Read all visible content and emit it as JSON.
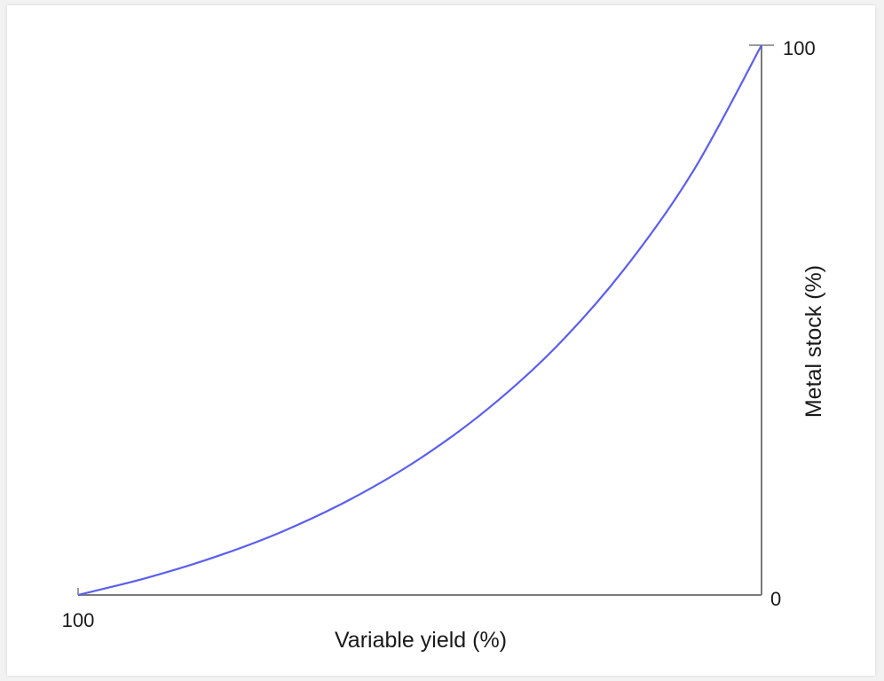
{
  "chart_data": {
    "type": "line",
    "title": "",
    "xlabel": "Variable yield (%)",
    "ylabel": "Metal stock (%)",
    "x_tick_labels": [
      "100"
    ],
    "y_tick_labels": [
      "0",
      "100"
    ],
    "xlim": [
      100,
      0
    ],
    "ylim": [
      0,
      100
    ],
    "x_axis_reversed": true,
    "y_axis_position": "right",
    "grid": false,
    "line_color": "#5a5ef0",
    "axis_color": "#7a7a7a",
    "series": [
      {
        "x": [
          100,
          90,
          80,
          70,
          60,
          50,
          40,
          30,
          20,
          10,
          0
        ],
        "y": [
          0,
          3.1,
          6.9,
          11.6,
          17.5,
          24.8,
          33.9,
          45.2,
          59.4,
          77.1,
          100
        ]
      }
    ]
  }
}
